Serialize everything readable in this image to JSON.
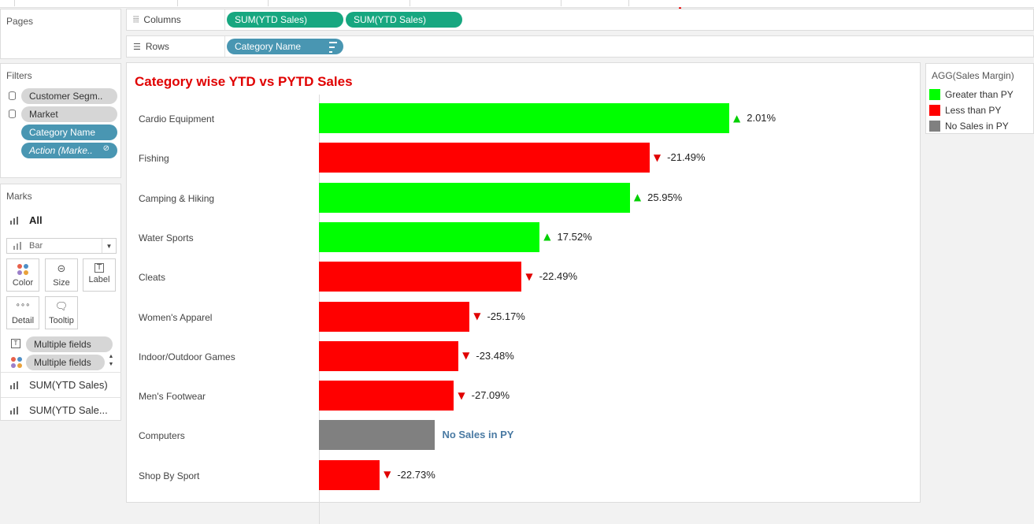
{
  "panels": {
    "pages_title": "Pages",
    "filters_title": "Filters",
    "marks_title": "Marks"
  },
  "shelves": {
    "columns_label": "Columns",
    "rows_label": "Rows",
    "columns_pills": [
      "SUM(YTD Sales)",
      "SUM(YTD Sales)"
    ],
    "rows_pill": "Category Name"
  },
  "filters": [
    "Customer Segm..",
    "Market",
    "Category Name",
    "Action (Marke.."
  ],
  "marks": {
    "all_label": "All",
    "mark_type": "Bar",
    "buttons": [
      "Color",
      "Size",
      "Label",
      "Detail",
      "Tooltip"
    ],
    "field_pills": [
      "Multiple fields",
      "Multiple fields"
    ],
    "measures": [
      "SUM(YTD Sales)",
      "SUM(YTD Sale..."
    ]
  },
  "legend": {
    "title": "AGG(Sales Margin)",
    "items": [
      {
        "label": "Greater than PY",
        "color": "#00ff00"
      },
      {
        "label": "Less than PY",
        "color": "#ff0000"
      },
      {
        "label": "No Sales in PY",
        "color": "#808080"
      }
    ]
  },
  "chart_data": {
    "type": "bar",
    "orientation": "horizontal",
    "title": "Category wise YTD vs PYTD Sales",
    "categories": [
      "Cardio Equipment",
      "Fishing",
      "Camping & Hiking",
      "Water Sports",
      "Cleats",
      "Women's Apparel",
      "Indoor/Outdoor Games",
      "Men's Footwear",
      "Computers",
      "Shop By Sport"
    ],
    "values": [
      100,
      80.6,
      75.8,
      53.8,
      49.4,
      36.7,
      34.0,
      32.9,
      28.3,
      14.8
    ],
    "labels": [
      "2.01%",
      "-21.49%",
      "25.95%",
      "17.52%",
      "-22.49%",
      "-25.17%",
      "-23.48%",
      "-27.09%",
      "No Sales in PY",
      "-22.73%"
    ],
    "status": [
      "up",
      "down",
      "up",
      "up",
      "down",
      "down",
      "down",
      "down",
      "none",
      "down"
    ],
    "colors": {
      "up": "#00ff00",
      "down": "#ff0000",
      "none": "#808080"
    },
    "arrows": {
      "up": "▲",
      "down": "▼",
      "none": ""
    },
    "arrow_colors": {
      "up": "#00d000",
      "down": "#e00000"
    },
    "xlim": [
      0,
      100
    ],
    "grid": false
  }
}
